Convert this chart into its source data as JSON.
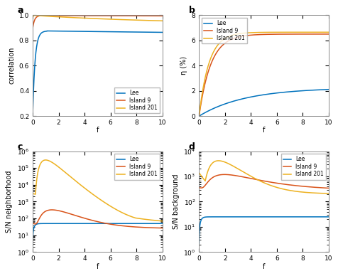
{
  "title_a": "a",
  "title_b": "b",
  "title_c": "c",
  "title_d": "d",
  "xlabel": "f",
  "ylabel_a": "correlation",
  "ylabel_b": "η (%)",
  "ylabel_c": "S/N neighborhood",
  "ylabel_d": "S/N background",
  "legend_labels": [
    "Lee",
    "Island 9",
    "Island 201"
  ],
  "colors": [
    "#0072BD",
    "#D95319",
    "#EDB120"
  ],
  "xlim": [
    0,
    10
  ],
  "ylim_a": [
    0.2,
    1.0
  ],
  "ylim_b": [
    0,
    8
  ],
  "ylim_c_log": [
    1.0,
    1000000.0
  ],
  "ylim_d_log": [
    1.0,
    10000.0
  ],
  "bg_color": "#f5f5f5"
}
